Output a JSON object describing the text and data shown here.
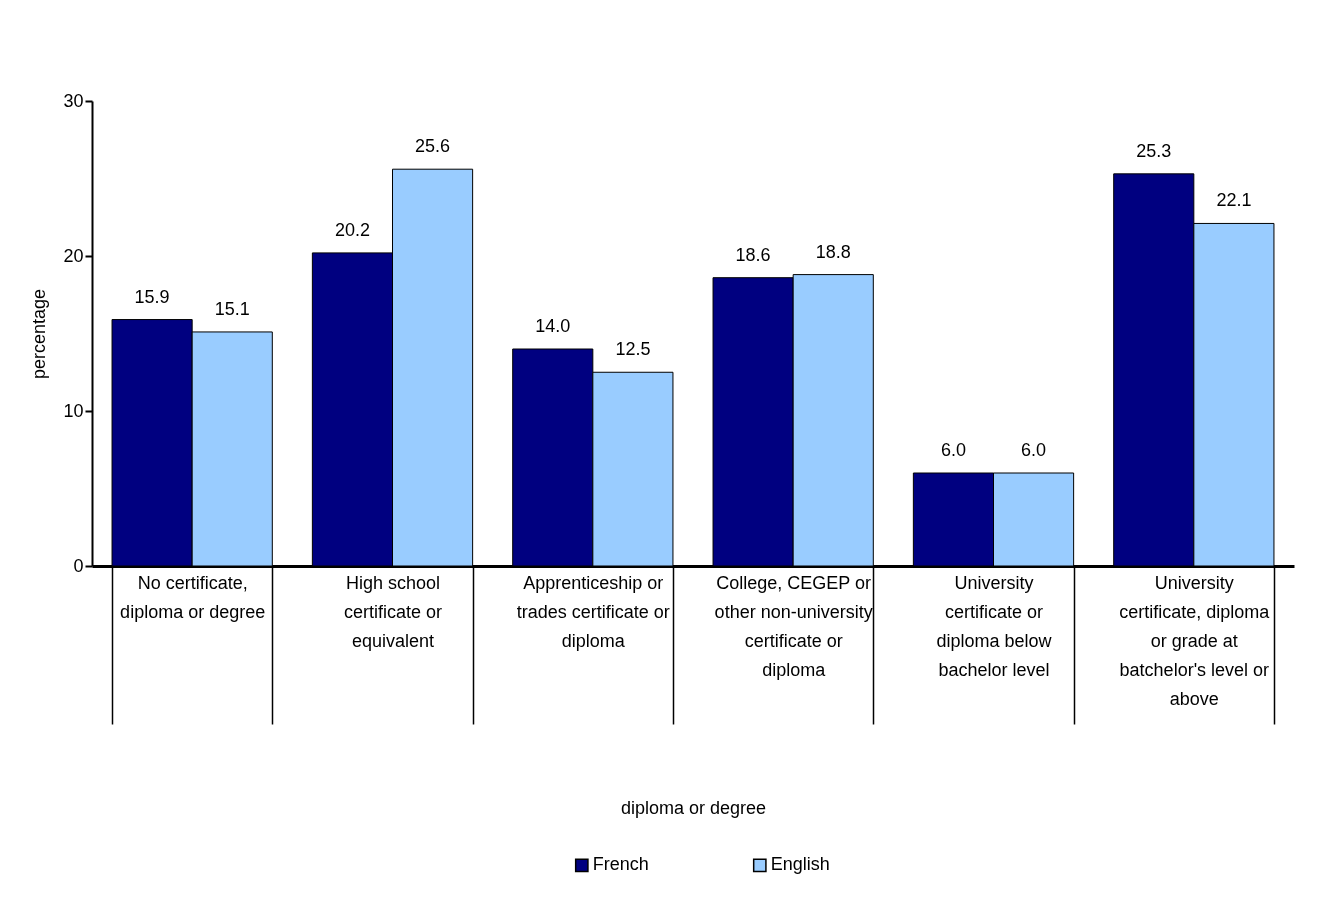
{
  "chart_data": {
    "type": "bar",
    "xlabel": "diploma or degree",
    "ylabel": "percentage",
    "categories": [
      "No certificate, diploma or degree",
      "High school certificate or equivalent",
      "Apprenticeship or trades certificate or diploma",
      "College, CEGEP or other non-university certificate or diploma",
      "University certificate or diploma below bachelor level",
      "University certificate, diploma or grade at batchelor's level or above"
    ],
    "series": [
      {
        "name": "French",
        "color": "#000080",
        "values": [
          15.9,
          20.2,
          14.0,
          18.6,
          6.0,
          25.3
        ],
        "value_labels": [
          "15.9",
          "20.2",
          "14.0",
          "18.6",
          "6.0",
          "25.3"
        ]
      },
      {
        "name": "English",
        "color": "#99ccff",
        "values": [
          15.1,
          25.6,
          12.5,
          18.8,
          6.0,
          22.1
        ],
        "value_labels": [
          "15.1",
          "25.6",
          "12.5",
          "18.8",
          "6.0",
          "22.1"
        ]
      }
    ],
    "ylim": [
      0,
      30
    ],
    "yticks": [
      0,
      10,
      20,
      30
    ],
    "legend": "bottom",
    "grid": false
  }
}
